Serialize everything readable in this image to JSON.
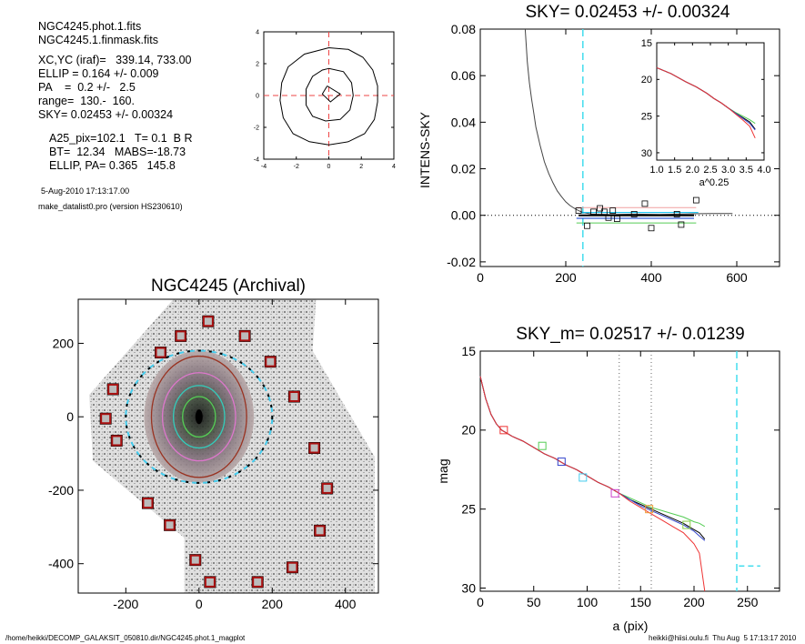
{
  "info": {
    "line1": "NGC4245.phot.1.fits",
    "line2": "NGC4245.1.finmask.fits",
    "line3": "XC,YC (iraf)=   339.14, 733.00",
    "line4": "ELLIP = 0.164 +/- 0.009",
    "line5": "PA    =  0.2 +/-   2.5",
    "line6": "range=  130.-  160.",
    "line7": "SKY= 0.02453 +/- 0.00324",
    "line8": "A25_pix=102.1   T= 0.1  B R",
    "line9": "BT=  12.34   MABS=-18.73",
    "line10": "ELLIP, PA= 0.365   145.8",
    "date": "5-Aug-2010 17:13:17.00",
    "program": "make_datalist0.pro (version HS230610)"
  },
  "footer": {
    "left": "/home/heikki/DECOMP_GALAKSIT_050810.dir/NGC4245.phot.1_magplot",
    "right": "heikki@hiisi.oulu.fi  Thu Aug  5 17:13:17 2010"
  },
  "chart_data": [
    {
      "type": "line",
      "panel": "isophote-shape",
      "xlim": [
        -4,
        4
      ],
      "ylim": [
        -4,
        4
      ],
      "xticks": [
        "-4",
        "-2",
        "0",
        "2",
        "4"
      ],
      "yticks": [
        "-4",
        "-2",
        "0",
        "2",
        "4"
      ],
      "contours": [
        [
          [
            0,
            3.0
          ],
          [
            1.2,
            2.9
          ],
          [
            2.1,
            2.4
          ],
          [
            2.7,
            1.6
          ],
          [
            3.0,
            0.6
          ],
          [
            3.0,
            -0.4
          ],
          [
            2.8,
            -1.5
          ],
          [
            2.2,
            -2.4
          ],
          [
            1.2,
            -2.9
          ],
          [
            0,
            -3.1
          ],
          [
            -1.2,
            -2.9
          ],
          [
            -2.2,
            -2.4
          ],
          [
            -2.8,
            -1.4
          ],
          [
            -3.0,
            -0.3
          ],
          [
            -2.9,
            0.8
          ],
          [
            -2.5,
            1.8
          ],
          [
            -1.5,
            2.6
          ],
          [
            0,
            3.0
          ]
        ],
        [
          [
            0,
            1.7
          ],
          [
            0.9,
            1.5
          ],
          [
            1.4,
            0.8
          ],
          [
            1.5,
            0
          ],
          [
            1.3,
            -0.9
          ],
          [
            0.7,
            -1.5
          ],
          [
            -0.2,
            -1.6
          ],
          [
            -1.0,
            -1.3
          ],
          [
            -1.4,
            -0.6
          ],
          [
            -1.4,
            0.4
          ],
          [
            -1.0,
            1.2
          ],
          [
            -0.4,
            1.6
          ],
          [
            0,
            1.7
          ]
        ],
        [
          [
            -0.1,
            0.6
          ],
          [
            0.7,
            0.1
          ],
          [
            0.1,
            -0.4
          ],
          [
            -0.4,
            0.1
          ],
          [
            -0.1,
            0.6
          ]
        ]
      ]
    },
    {
      "type": "line",
      "panel": "intensity-profile",
      "title": "SKY= 0.02453 +/- 0.00324",
      "ylabel": "INTENS-SKY",
      "xlim": [
        0,
        700
      ],
      "ylim": [
        -0.022,
        0.08
      ],
      "xticks": [
        "0",
        "200",
        "400",
        "600"
      ],
      "yticks": [
        "-0.02",
        "0.00",
        "0.02",
        "0.04",
        "0.06",
        "0.08"
      ],
      "profile_x": [
        105,
        110,
        115,
        120,
        125,
        130,
        140,
        150,
        160,
        170,
        180,
        190,
        200,
        210,
        220,
        230,
        240,
        260,
        300,
        360,
        420,
        480,
        540,
        590
      ],
      "profile_y": [
        0.08,
        0.066,
        0.057,
        0.05,
        0.044,
        0.038,
        0.03,
        0.023,
        0.018,
        0.014,
        0.0105,
        0.008,
        0.0058,
        0.0042,
        0.003,
        0.002,
        0.0012,
        0.0006,
        0.0003,
        0.0005,
        0.0004,
        0.0006,
        0.0008,
        0.0008
      ],
      "sky_boxes_x": [
        230,
        250,
        265,
        280,
        290,
        300,
        310,
        320,
        360,
        385,
        400,
        460,
        470,
        505
      ],
      "sky_boxes_y": [
        0.002,
        -0.0045,
        0.0015,
        0.003,
        0.0015,
        -0.001,
        0.002,
        -0.0015,
        0.0005,
        0.005,
        -0.0055,
        0.0005,
        -0.004,
        0.0065
      ],
      "vline_x": 240,
      "range_lines": [
        {
          "y": 0.0033,
          "x": [
            225,
            505
          ],
          "color": "#f0a0a0"
        },
        {
          "y": 0.0,
          "x": [
            230,
            500
          ],
          "color": "#000000"
        },
        {
          "y": 0.0012,
          "x": [
            235,
            510
          ],
          "color": "#00bbee"
        },
        {
          "y": -0.0013,
          "x": [
            225,
            500
          ],
          "color": "#0033cc"
        },
        {
          "y": -0.0033,
          "x": [
            225,
            505
          ],
          "color": "#55cc55"
        }
      ],
      "inset": {
        "xlabel": "a^0.25",
        "xlim": [
          1.0,
          4.0
        ],
        "ylim": [
          15,
          31
        ],
        "xticks": [
          "1.0",
          "1.5",
          "2.0",
          "2.5",
          "3.0",
          "3.5",
          "4.0"
        ],
        "yticks": [
          "15",
          "20",
          "25",
          "30"
        ],
        "x": [
          1.0,
          1.4,
          1.8,
          2.1,
          2.4,
          2.6,
          2.8,
          3.0,
          3.2,
          3.4,
          3.6,
          3.75
        ],
        "series": [
          {
            "color": "#55cc55",
            "y": [
              18.4,
              19.2,
              20.3,
              21.0,
              21.9,
              22.6,
              23.2,
              23.9,
              24.5,
              25.0,
              25.5,
              26.0
            ]
          },
          {
            "color": "#000000",
            "y": [
              18.4,
              19.2,
              20.3,
              21.0,
              21.9,
              22.6,
              23.2,
              23.9,
              24.6,
              25.2,
              25.8,
              26.8
            ]
          },
          {
            "color": "#3344cc",
            "y": [
              18.4,
              19.2,
              20.3,
              21.0,
              21.9,
              22.6,
              23.2,
              23.9,
              24.6,
              25.3,
              26.0,
              26.9
            ]
          },
          {
            "color": "#ee3333",
            "y": [
              18.4,
              19.2,
              20.3,
              21.0,
              21.9,
              22.6,
              23.2,
              23.9,
              24.7,
              25.5,
              26.4,
              28.0
            ]
          }
        ]
      }
    },
    {
      "type": "scatter",
      "panel": "image",
      "title": "NGC4245 (Archival)",
      "xlim": [
        -330,
        490
      ],
      "ylim": [
        -480,
        320
      ],
      "xticks": [
        "-200",
        "0",
        "200",
        "400"
      ],
      "yticks": [
        "-400",
        "-200",
        "0",
        "200"
      ],
      "ellipses": [
        {
          "a": 200,
          "b": 180,
          "color": "#44ccee",
          "style": "dashed"
        },
        {
          "a": 200,
          "b": 180,
          "color": "#000000",
          "style": "dashed"
        },
        {
          "a": 130,
          "b": 165,
          "color": "#993322",
          "style": "solid"
        },
        {
          "a": 100,
          "b": 120,
          "color": "#dd77cc",
          "style": "solid"
        },
        {
          "a": 70,
          "b": 85,
          "color": "#33ccbb",
          "style": "solid"
        },
        {
          "a": 45,
          "b": 55,
          "color": "#55cc55",
          "style": "solid"
        }
      ],
      "sky_box_x": [
        25,
        -50,
        125,
        195,
        -105,
        -235,
        -255,
        260,
        -225,
        315,
        350,
        -140,
        330,
        -80,
        -10,
        30,
        160,
        255
      ],
      "sky_box_y": [
        260,
        220,
        220,
        150,
        175,
        75,
        -5,
        55,
        -65,
        -85,
        -195,
        -235,
        -310,
        -295,
        -390,
        -450,
        -450,
        -410
      ]
    },
    {
      "type": "line",
      "panel": "magnitude-profile",
      "title": "SKY_m=  0.02517 +/- 0.01239",
      "xlabel": "a (pix)",
      "ylabel": "mag",
      "xlim": [
        0,
        280
      ],
      "ylim": [
        30.2,
        15
      ],
      "xticks": [
        "0",
        "50",
        "100",
        "150",
        "200",
        "250"
      ],
      "yticks": [
        "15",
        "20",
        "25",
        "30"
      ],
      "vlines": [
        {
          "x": 130,
          "color": "#666666"
        },
        {
          "x": 160,
          "color": "#666666"
        },
        {
          "x": 240,
          "color": "#44ddee"
        }
      ],
      "sky_level": {
        "x": [
          242,
          262
        ],
        "y": 28.6,
        "color": "#44ddee"
      },
      "x": [
        0,
        5,
        10,
        15,
        20,
        30,
        40,
        50,
        60,
        70,
        80,
        90,
        100,
        110,
        120,
        130,
        140,
        150,
        160,
        170,
        180,
        190,
        200,
        205,
        210
      ],
      "series": [
        {
          "color": "#55cc55",
          "y": [
            16.6,
            18.0,
            19.0,
            19.6,
            20.0,
            20.4,
            20.7,
            21.1,
            21.5,
            21.8,
            22.2,
            22.5,
            22.9,
            23.3,
            23.6,
            24.0,
            24.3,
            24.6,
            24.9,
            25.1,
            25.3,
            25.5,
            25.8,
            25.9,
            26.1
          ]
        },
        {
          "color": "#000000",
          "y": [
            16.6,
            18.0,
            19.0,
            19.6,
            20.0,
            20.4,
            20.7,
            21.1,
            21.5,
            21.8,
            22.2,
            22.5,
            22.9,
            23.3,
            23.6,
            24.0,
            24.4,
            24.7,
            25.0,
            25.3,
            25.6,
            25.9,
            26.3,
            26.5,
            26.9
          ]
        },
        {
          "color": "#3344cc",
          "y": [
            16.6,
            18.0,
            19.0,
            19.6,
            20.0,
            20.4,
            20.7,
            21.1,
            21.5,
            21.8,
            22.2,
            22.5,
            22.9,
            23.3,
            23.6,
            24.0,
            24.4,
            24.8,
            25.1,
            25.4,
            25.7,
            26.0,
            26.4,
            26.7,
            27.0
          ]
        },
        {
          "color": "#ee3333",
          "y": [
            16.6,
            18.0,
            19.0,
            19.6,
            20.0,
            20.4,
            20.7,
            21.1,
            21.5,
            21.8,
            22.2,
            22.5,
            22.9,
            23.3,
            23.6,
            24.0,
            24.5,
            24.9,
            25.3,
            25.7,
            26.1,
            26.5,
            27.2,
            27.8,
            30.2
          ]
        }
      ],
      "markers": [
        {
          "x": 22,
          "y": 20.0,
          "color": "#ee3333"
        },
        {
          "x": 58,
          "y": 21.0,
          "color": "#55cc55"
        },
        {
          "x": 76,
          "y": 22.0,
          "color": "#3344cc"
        },
        {
          "x": 96,
          "y": 23.0,
          "color": "#44ccee"
        },
        {
          "x": 126,
          "y": 24.0,
          "color": "#cc44cc"
        },
        {
          "x": 158,
          "y": 25.0,
          "color": "#ee9933"
        },
        {
          "x": 193,
          "y": 26.0,
          "color": "#88cc44"
        }
      ]
    }
  ]
}
